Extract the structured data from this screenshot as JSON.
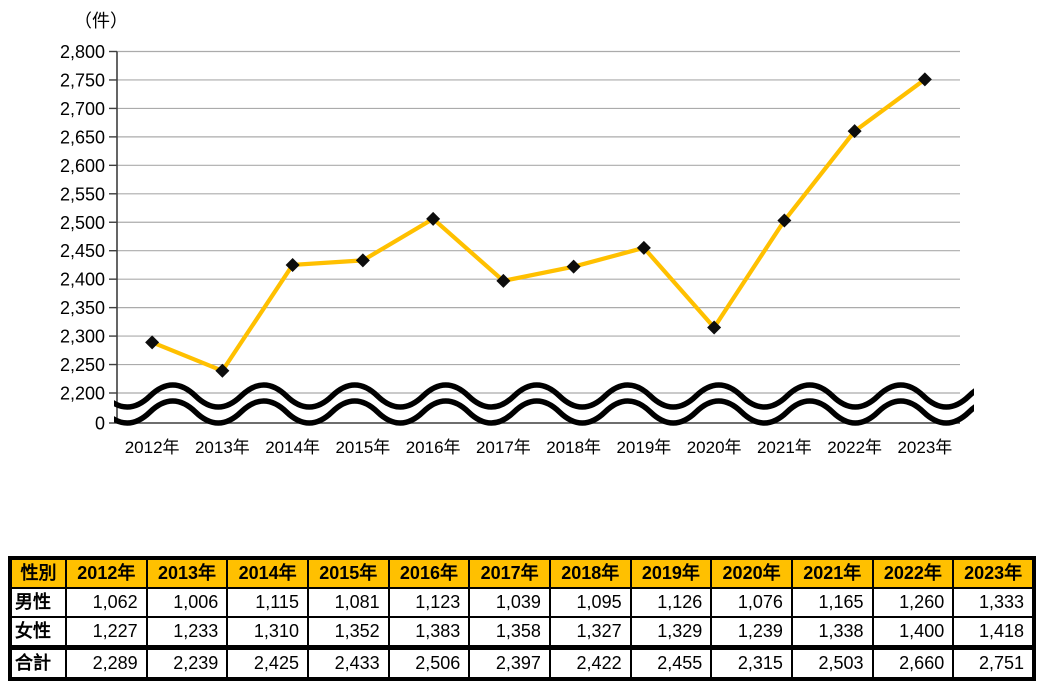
{
  "chart_data": {
    "type": "line",
    "title": "",
    "unit_label": "（件）",
    "categories": [
      "2012年",
      "2013年",
      "2014年",
      "2015年",
      "2016年",
      "2017年",
      "2018年",
      "2019年",
      "2020年",
      "2021年",
      "2022年",
      "2023年"
    ],
    "series": [
      {
        "name": "合計",
        "values": [
          2289,
          2239,
          2425,
          2433,
          2506,
          2397,
          2422,
          2455,
          2315,
          2503,
          2660,
          2751
        ]
      }
    ],
    "y_tick_values": [
      2200,
      2250,
      2300,
      2350,
      2400,
      2450,
      2500,
      2550,
      2600,
      2650,
      2700,
      2750,
      2800
    ],
    "y_tick_labels": [
      "2,200",
      "2,250",
      "2,300",
      "2,350",
      "2,400",
      "2,450",
      "2,500",
      "2,550",
      "2,600",
      "2,650",
      "2,700",
      "2,750",
      "2,800"
    ],
    "y_origin_label": "0",
    "ylim": [
      2200,
      2800
    ],
    "axis_break": true,
    "grid": true,
    "legend": "none",
    "line_color": "#FFC000",
    "marker_color": "#0d0d0d",
    "grid_color": "#ABABAB",
    "axis_color": "#3f3f3f"
  },
  "table": {
    "header_bg": "#FFC000",
    "header": [
      "性別",
      "2012年",
      "2013年",
      "2014年",
      "2015年",
      "2016年",
      "2017年",
      "2018年",
      "2019年",
      "2020年",
      "2021年",
      "2022年",
      "2023年"
    ],
    "rows": [
      {
        "label": "男性",
        "values": [
          "1,062",
          "1,006",
          "1,115",
          "1,081",
          "1,123",
          "1,039",
          "1,095",
          "1,126",
          "1,076",
          "1,165",
          "1,260",
          "1,333"
        ]
      },
      {
        "label": "女性",
        "values": [
          "1,227",
          "1,233",
          "1,310",
          "1,352",
          "1,383",
          "1,358",
          "1,327",
          "1,329",
          "1,239",
          "1,338",
          "1,400",
          "1,418"
        ]
      },
      {
        "label": "合計",
        "values": [
          "2,289",
          "2,239",
          "2,425",
          "2,433",
          "2,506",
          "2,397",
          "2,422",
          "2,455",
          "2,315",
          "2,503",
          "2,660",
          "2,751"
        ]
      }
    ]
  }
}
